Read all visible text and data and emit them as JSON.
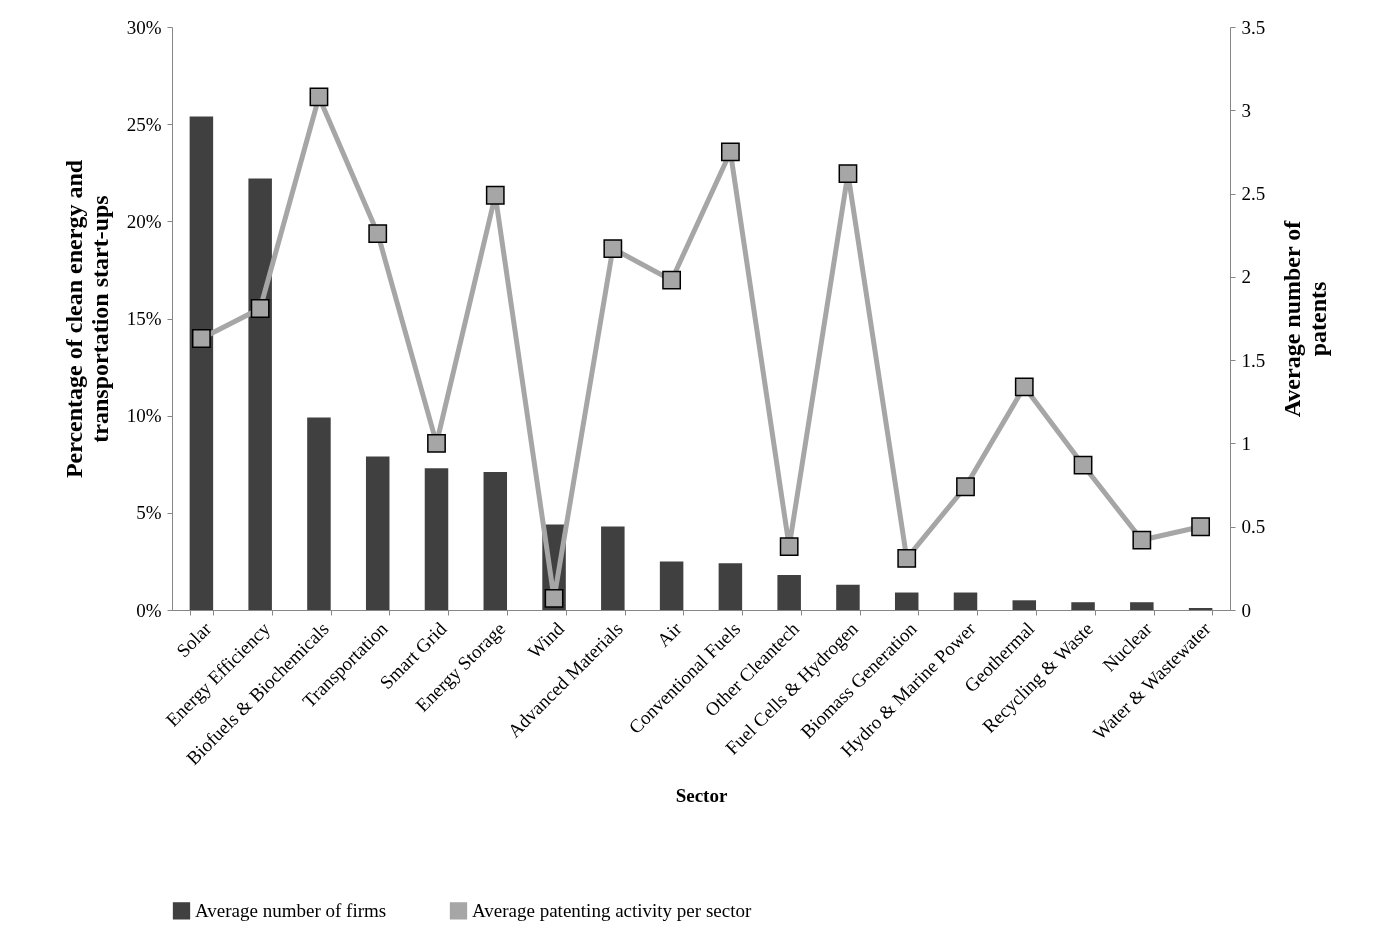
{
  "chart_data": {
    "type": "bar",
    "xlabel": "Sector",
    "ylabel": "Percentage of clean energy and transportation start-ups",
    "y2label": "Average number of patents",
    "categories": [
      "Solar",
      "Energy Efficiency",
      "Biofuels & Biochemicals",
      "Transportation",
      "Smart Grid",
      "Energy Storage",
      "Wind",
      "Advanced Materials",
      "Air",
      "Conventional Fuels",
      "Other Cleantech",
      "Fuel Cells & Hydrogen",
      "Biomass Generation",
      "Hydro & Marine Power",
      "Geothermal",
      "Recycling & Waste",
      "Nuclear",
      "Water & Wastewater"
    ],
    "series": [
      {
        "name": "Average number of firms",
        "color": "#404040",
        "values": [
          25.4,
          22.2,
          9.9,
          7.9,
          7.3,
          7.1,
          4.4,
          4.3,
          2.5,
          2.4,
          1.8,
          1.3,
          0.9,
          0.9,
          0.5,
          0.4,
          0.4,
          0.1
        ]
      },
      {
        "name": "Average patenting activity per sector",
        "type": "line",
        "axis": "y2",
        "color": "#a6a6a6",
        "marker": "square",
        "values": [
          1.63,
          1.81,
          3.08,
          2.26,
          1.0,
          2.49,
          0.07,
          2.17,
          1.98,
          2.75,
          0.38,
          2.62,
          0.31,
          0.74,
          1.34,
          0.87,
          0.42,
          0.5
        ]
      }
    ],
    "ylim": [
      0,
      30
    ],
    "yticks": [
      {
        "value": 0,
        "label": "0%"
      },
      {
        "value": 5,
        "label": "5%"
      },
      {
        "value": 10,
        "label": "10%"
      },
      {
        "value": 15,
        "label": "15%"
      },
      {
        "value": 20,
        "label": "20%"
      },
      {
        "value": 25,
        "label": "25%"
      },
      {
        "value": 30,
        "label": "30%"
      }
    ],
    "y2lim": [
      0,
      3.5
    ],
    "y2ticks": [
      0,
      0.5,
      1,
      1.5,
      2,
      2.5,
      3,
      3.5
    ],
    "grid": false,
    "legend": "bottom"
  }
}
